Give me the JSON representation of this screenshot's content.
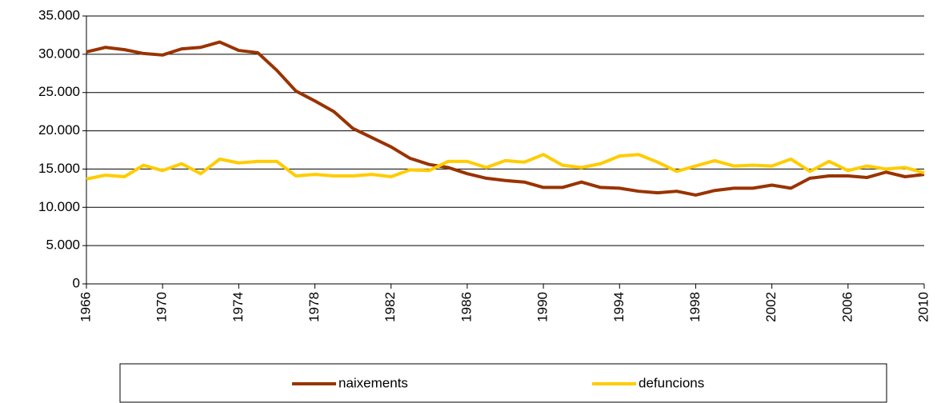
{
  "chart_data": {
    "type": "line",
    "x": [
      1966,
      1967,
      1968,
      1969,
      1970,
      1971,
      1972,
      1973,
      1974,
      1975,
      1976,
      1977,
      1978,
      1979,
      1980,
      1981,
      1982,
      1983,
      1984,
      1985,
      1986,
      1987,
      1988,
      1989,
      1990,
      1991,
      1992,
      1993,
      1994,
      1995,
      1996,
      1997,
      1998,
      1999,
      2000,
      2001,
      2002,
      2003,
      2004,
      2005,
      2006,
      2007,
      2008,
      2009,
      2010
    ],
    "series": [
      {
        "name": "naixements",
        "color": "#993300",
        "values": [
          30300,
          30900,
          30600,
          30100,
          29900,
          30700,
          30900,
          31600,
          30500,
          30200,
          27900,
          25200,
          23900,
          22500,
          20300,
          19100,
          17900,
          16400,
          15600,
          15200,
          14400,
          13800,
          13500,
          13300,
          12600,
          12600,
          13300,
          12600,
          12500,
          12100,
          11900,
          12100,
          11600,
          12200,
          12500,
          12500,
          12900,
          12500,
          13800,
          14100,
          14100,
          13900,
          14600,
          14000,
          14300
        ]
      },
      {
        "name": "defuncions",
        "color": "#ffcc00",
        "values": [
          13700,
          14200,
          14000,
          15500,
          14800,
          15700,
          14400,
          16300,
          15800,
          16000,
          16000,
          14100,
          14300,
          14100,
          14100,
          14300,
          14000,
          14900,
          14800,
          16000,
          16000,
          15200,
          16100,
          15900,
          16900,
          15500,
          15200,
          15700,
          16700,
          16900,
          15900,
          14700,
          15400,
          16100,
          15400,
          15500,
          15400,
          16300,
          14700,
          16000,
          14800,
          15400,
          15000,
          15200,
          14500
        ]
      }
    ],
    "xlim": [
      1966,
      2010
    ],
    "xticks": [
      1966,
      1970,
      1974,
      1978,
      1982,
      1986,
      1990,
      1994,
      1998,
      2002,
      2006,
      2010
    ],
    "ylim": [
      0,
      35000
    ],
    "yticks": [
      0,
      {
        "value": 5000,
        "label": "5.000"
      },
      {
        "value": 10000,
        "label": "10.000"
      },
      {
        "value": 15000,
        "label": "15.000"
      },
      {
        "value": 20000,
        "label": "20.000"
      },
      {
        "value": 25000,
        "label": "25.000"
      },
      {
        "value": 30000,
        "label": "30.000"
      },
      {
        "value": 35000,
        "label": "35.000"
      }
    ],
    "grid": true,
    "legend": "bottom"
  }
}
